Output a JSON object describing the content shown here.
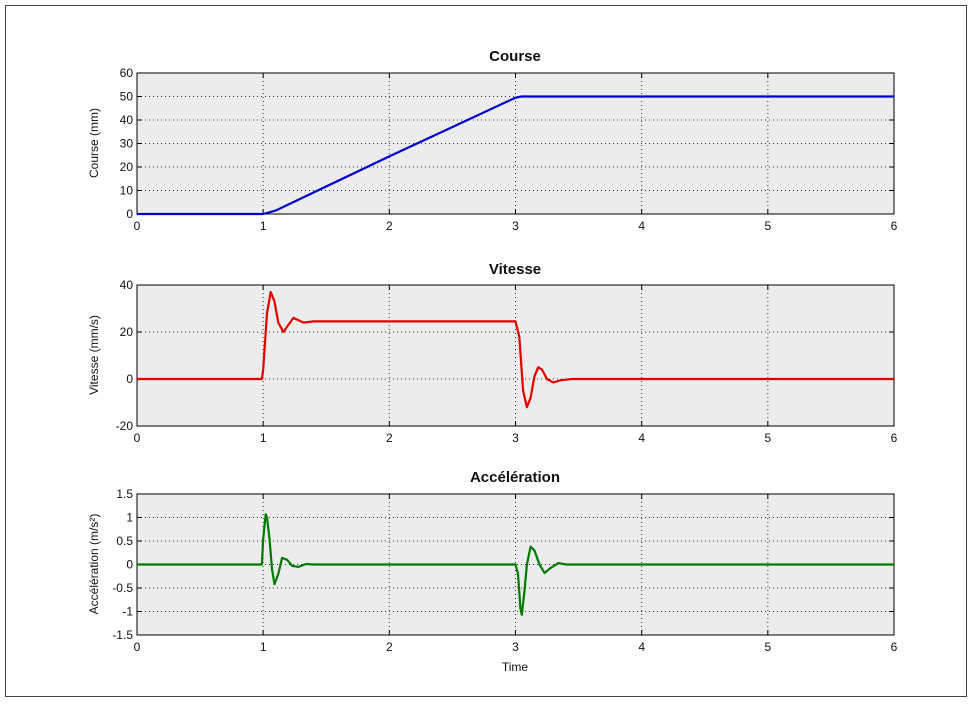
{
  "chart_data": [
    {
      "type": "line",
      "title": "Course",
      "xlabel": "",
      "ylabel": "Course (mm)",
      "xlim": [
        0,
        6
      ],
      "ylim": [
        0,
        60
      ],
      "xticks": [
        0,
        1,
        2,
        3,
        4,
        5,
        6
      ],
      "yticks": [
        0,
        10,
        20,
        30,
        40,
        50,
        60
      ],
      "grid": true,
      "series": [
        {
          "color": "#0000cc",
          "x": [
            0,
            1.0,
            1.1,
            2.0,
            3.0,
            3.05,
            3.1,
            4.0,
            5.0,
            6.0
          ],
          "y": [
            0,
            0,
            1.5,
            24.5,
            49.5,
            50,
            50,
            50,
            50,
            50
          ]
        }
      ]
    },
    {
      "type": "line",
      "title": "Vitesse",
      "xlabel": "",
      "ylabel": "Vitesse (mm/s)",
      "xlim": [
        0,
        6
      ],
      "ylim": [
        -20,
        40
      ],
      "xticks": [
        0,
        1,
        2,
        3,
        4,
        5,
        6
      ],
      "yticks": [
        -20,
        0,
        20,
        40
      ],
      "grid": true,
      "series": [
        {
          "color": "#e00000",
          "x": [
            0,
            0.99,
            1.0,
            1.03,
            1.06,
            1.09,
            1.12,
            1.16,
            1.2,
            1.24,
            1.28,
            1.32,
            1.4,
            2.0,
            3.0,
            3.03,
            3.06,
            3.09,
            3.12,
            3.15,
            3.18,
            3.21,
            3.25,
            3.3,
            3.36,
            3.45,
            4.0,
            5.0,
            6.0
          ],
          "y": [
            0,
            0,
            4,
            28,
            37,
            33,
            24,
            20,
            23,
            26,
            25,
            24,
            24.5,
            24.5,
            24.5,
            18,
            -5,
            -12,
            -8,
            1,
            5,
            4,
            0,
            -1.5,
            -0.5,
            0,
            0,
            0,
            0
          ]
        }
      ]
    },
    {
      "type": "line",
      "title": "Accélération",
      "xlabel": "Time",
      "ylabel": "Accélération (m/s²)",
      "xlim": [
        0,
        6
      ],
      "ylim": [
        -1.5,
        1.5
      ],
      "xticks": [
        0,
        1,
        2,
        3,
        4,
        5,
        6
      ],
      "yticks": [
        -1.5,
        -1,
        -0.5,
        0,
        0.5,
        1,
        1.5
      ],
      "grid": true,
      "series": [
        {
          "color": "#007a00",
          "x": [
            0,
            0.99,
            1.0,
            1.02,
            1.03,
            1.05,
            1.07,
            1.09,
            1.12,
            1.15,
            1.19,
            1.23,
            1.28,
            1.34,
            1.4,
            2.0,
            3.0,
            3.02,
            3.04,
            3.05,
            3.07,
            3.09,
            3.12,
            3.15,
            3.19,
            3.23,
            3.28,
            3.34,
            3.4,
            4.0,
            5.0,
            6.0
          ],
          "y": [
            0,
            0,
            0.55,
            1.07,
            1.0,
            0.55,
            -0.1,
            -0.42,
            -0.2,
            0.14,
            0.1,
            -0.03,
            -0.05,
            0.01,
            0,
            0,
            0,
            -0.2,
            -0.95,
            -1.07,
            -0.6,
            0.0,
            0.38,
            0.3,
            0.0,
            -0.18,
            -0.07,
            0.03,
            0,
            0,
            0,
            0
          ]
        }
      ]
    }
  ]
}
